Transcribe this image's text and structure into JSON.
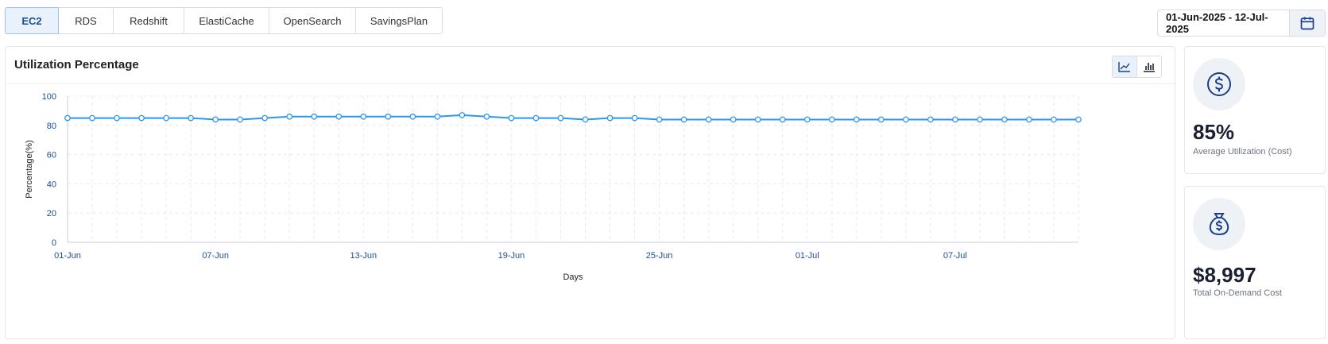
{
  "tabs": [
    {
      "label": "EC2",
      "active": true
    },
    {
      "label": "RDS",
      "active": false
    },
    {
      "label": "Redshift",
      "active": false
    },
    {
      "label": "ElastiCache",
      "active": false
    },
    {
      "label": "OpenSearch",
      "active": false
    },
    {
      "label": "SavingsPlan",
      "active": false
    }
  ],
  "date_range": {
    "label": "01-Jun-2025 - 12-Jul-2025",
    "icon": "calendar-icon"
  },
  "chart_panel": {
    "title": "Utilization Percentage",
    "view_toggle": [
      {
        "icon": "line-chart-icon",
        "active": true
      },
      {
        "icon": "bar-chart-icon",
        "active": false
      }
    ]
  },
  "kpis": [
    {
      "value": "85%",
      "label": "Average Utilization (Cost)",
      "icon": "dollar-circle-icon"
    },
    {
      "value": "$8,997",
      "label": "Total On-Demand Cost",
      "icon": "money-bag-icon"
    }
  ],
  "colors": {
    "line": "#2f96f0",
    "axis_text": "#1b4f91",
    "grid": "#e6e9ee",
    "icon": "#1b3f8f"
  },
  "chart_data": {
    "type": "line",
    "xlabel": "Days",
    "ylabel": "Percentage(%)",
    "ylim": [
      0,
      100
    ],
    "yticks": [
      0,
      20,
      40,
      60,
      80,
      100
    ],
    "x_tick_labels": [
      "01-Jun",
      "07-Jun",
      "13-Jun",
      "19-Jun",
      "25-Jun",
      "01-Jul",
      "07-Jul"
    ],
    "grid": true,
    "x": [
      "2025-06-01",
      "2025-06-02",
      "2025-06-03",
      "2025-06-04",
      "2025-06-05",
      "2025-06-06",
      "2025-06-07",
      "2025-06-08",
      "2025-06-09",
      "2025-06-10",
      "2025-06-11",
      "2025-06-12",
      "2025-06-13",
      "2025-06-14",
      "2025-06-15",
      "2025-06-16",
      "2025-06-17",
      "2025-06-18",
      "2025-06-19",
      "2025-06-20",
      "2025-06-21",
      "2025-06-22",
      "2025-06-23",
      "2025-06-24",
      "2025-06-25",
      "2025-06-26",
      "2025-06-27",
      "2025-06-28",
      "2025-06-29",
      "2025-06-30",
      "2025-07-01",
      "2025-07-02",
      "2025-07-03",
      "2025-07-04",
      "2025-07-05",
      "2025-07-06",
      "2025-07-07",
      "2025-07-08",
      "2025-07-09",
      "2025-07-10",
      "2025-07-11",
      "2025-07-12"
    ],
    "values": [
      85,
      85,
      85,
      85,
      85,
      85,
      84,
      84,
      85,
      86,
      86,
      86,
      86,
      86,
      86,
      86,
      87,
      86,
      85,
      85,
      85,
      84,
      85,
      85,
      84,
      84,
      84,
      84,
      84,
      84,
      84,
      84,
      84,
      84,
      84,
      84,
      84,
      84,
      84,
      84,
      84,
      84
    ]
  }
}
